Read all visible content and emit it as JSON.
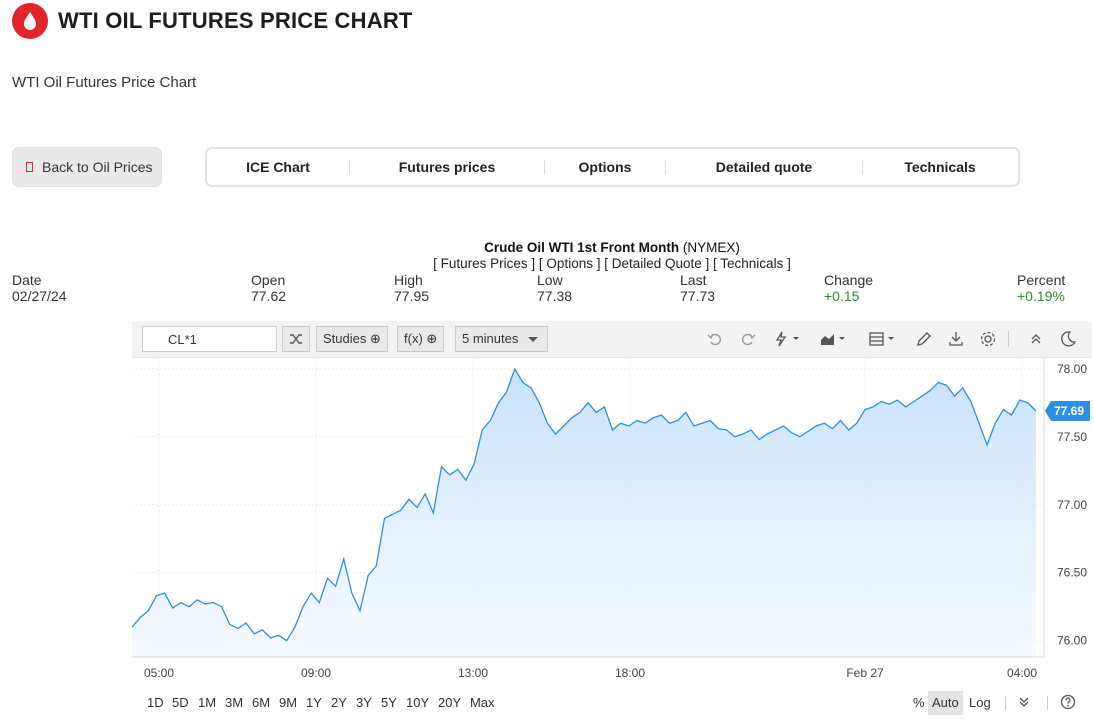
{
  "header": {
    "title": "WTI OIL FUTURES PRICE CHART",
    "subtitle": "WTI Oil Futures Price Chart",
    "brand_color": "#e0262b"
  },
  "nav": {
    "back_label": "Back to Oil Prices",
    "tabs": [
      "ICE Chart",
      "Futures prices",
      "Options",
      "Detailed quote",
      "Technicals"
    ]
  },
  "quote": {
    "name": "Crude Oil WTI 1st Front Month",
    "exchange": "(NYMEX)",
    "links": "[ Futures Prices ] [ Options ] [ Detailed Quote ] [ Technicals ]",
    "stats": [
      {
        "label": "Date",
        "value": "02/27/24"
      },
      {
        "label": "Open",
        "value": "77.62"
      },
      {
        "label": "High",
        "value": "77.95"
      },
      {
        "label": "Low",
        "value": "77.38"
      },
      {
        "label": "Last",
        "value": "77.73"
      },
      {
        "label": "Change",
        "value": "+0.15"
      },
      {
        "label": "Percent",
        "value": "+0.19%"
      }
    ],
    "positive_color": "#2e8b2e"
  },
  "toolbar": {
    "symbol": "CL*1",
    "studies_label": "Studies",
    "fx_label": "f(x)",
    "interval_label": "5 minutes",
    "icons": [
      "shuffle-icon",
      "undo-icon",
      "redo-icon",
      "lightning-icon",
      "area-chart-icon",
      "layout-icon",
      "pencil-icon",
      "download-icon",
      "gear-icon",
      "collapse-icon",
      "moon-icon"
    ]
  },
  "chart_data": {
    "type": "area",
    "x_ticks": [
      "05:00",
      "09:00",
      "13:00",
      "18:00",
      "Feb 27",
      "04:00"
    ],
    "y_ticks": [
      "76.00",
      "76.50",
      "77.00",
      "77.50",
      "78.00"
    ],
    "ylim": [
      75.88,
      78.08
    ],
    "last_price": "77.69",
    "line_color": "#2f8fe0",
    "fill_color": "#d6e9fc",
    "series": [
      {
        "values": [
          76.1,
          76.17,
          76.22,
          76.33,
          76.35,
          76.24,
          76.28,
          76.25,
          76.3,
          76.27,
          76.28,
          76.25,
          76.12,
          76.09,
          76.13,
          76.05,
          76.08,
          76.02,
          76.04,
          76.0,
          76.1,
          76.25,
          76.35,
          76.28,
          76.46,
          76.4,
          76.6,
          76.35,
          76.22,
          76.48,
          76.55,
          76.9,
          76.93,
          76.96,
          77.04,
          76.98,
          77.08,
          76.94,
          77.28,
          77.22,
          77.26,
          77.18,
          77.3,
          77.55,
          77.62,
          77.75,
          77.83,
          78.0,
          77.9,
          77.86,
          77.75,
          77.6,
          77.52,
          77.58,
          77.64,
          77.68,
          77.75,
          77.68,
          77.72,
          77.55,
          77.6,
          77.58,
          77.62,
          77.6,
          77.64,
          77.66,
          77.6,
          77.62,
          77.68,
          77.58,
          77.6,
          77.62,
          77.56,
          77.55,
          77.5,
          77.52,
          77.55,
          77.48,
          77.52,
          77.55,
          77.58,
          77.53,
          77.5,
          77.54,
          77.58,
          77.6,
          77.56,
          77.62,
          77.55,
          77.6,
          77.7,
          77.72,
          77.76,
          77.74,
          77.77,
          77.72,
          77.76,
          77.8,
          77.84,
          77.9,
          77.88,
          77.8,
          77.86,
          77.76,
          77.6,
          77.44,
          77.6,
          77.7,
          77.66,
          77.77,
          77.75,
          77.69
        ]
      }
    ]
  },
  "bottom_bar": {
    "ranges": [
      "1D",
      "5D",
      "1M",
      "3M",
      "6M",
      "9M",
      "1Y",
      "2Y",
      "3Y",
      "5Y",
      "10Y",
      "20Y",
      "Max"
    ],
    "scales": [
      "%",
      "Auto",
      "Log"
    ]
  }
}
